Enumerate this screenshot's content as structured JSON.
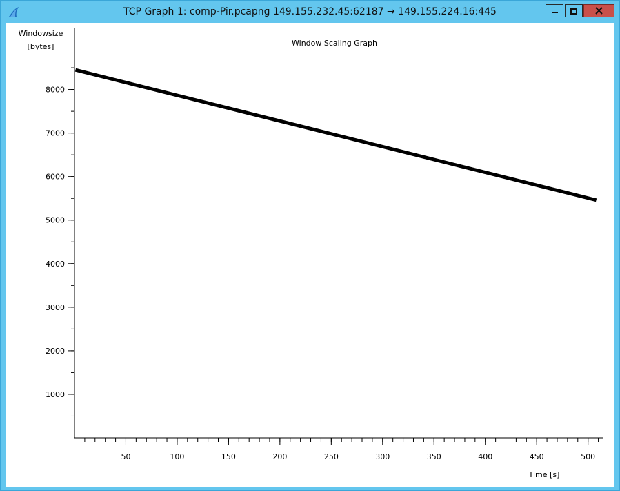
{
  "window": {
    "title": "TCP Graph 1: comp-Pir.pcapng 149.155.232.45:62187 → 149.155.224.16:445",
    "icon": "wireshark-fin-icon",
    "controls": {
      "minimize": "minimize-icon",
      "maximize": "maximize-icon",
      "close": "close-icon"
    }
  },
  "chart_data": {
    "type": "line",
    "title": "Window Scaling Graph",
    "xlabel": "Time [s]",
    "ylabel_line1": "Windowsize",
    "ylabel_line2": "[bytes]",
    "xlim": [
      0,
      515
    ],
    "ylim": [
      0,
      8850
    ],
    "x_ticks": [
      50,
      100,
      150,
      200,
      250,
      300,
      350,
      400,
      450,
      500
    ],
    "x_tick_labels": [
      "50",
      "100",
      "150",
      "200",
      "250",
      "300",
      "350",
      "400",
      "450",
      "500"
    ],
    "y_ticks": [
      1000,
      2000,
      3000,
      4000,
      5000,
      6000,
      7000,
      8000
    ],
    "y_tick_labels": [
      "1000",
      "2000",
      "3000",
      "4000",
      "5000",
      "6000",
      "7000",
      "8000"
    ],
    "x_minor_step": 10,
    "y_minor_step": 500,
    "grid": false,
    "series": [
      {
        "x": [
          1,
          508
        ],
        "y": [
          8450,
          5460
        ]
      }
    ],
    "colors": {
      "line": "#000000",
      "axis": "#000000"
    }
  }
}
